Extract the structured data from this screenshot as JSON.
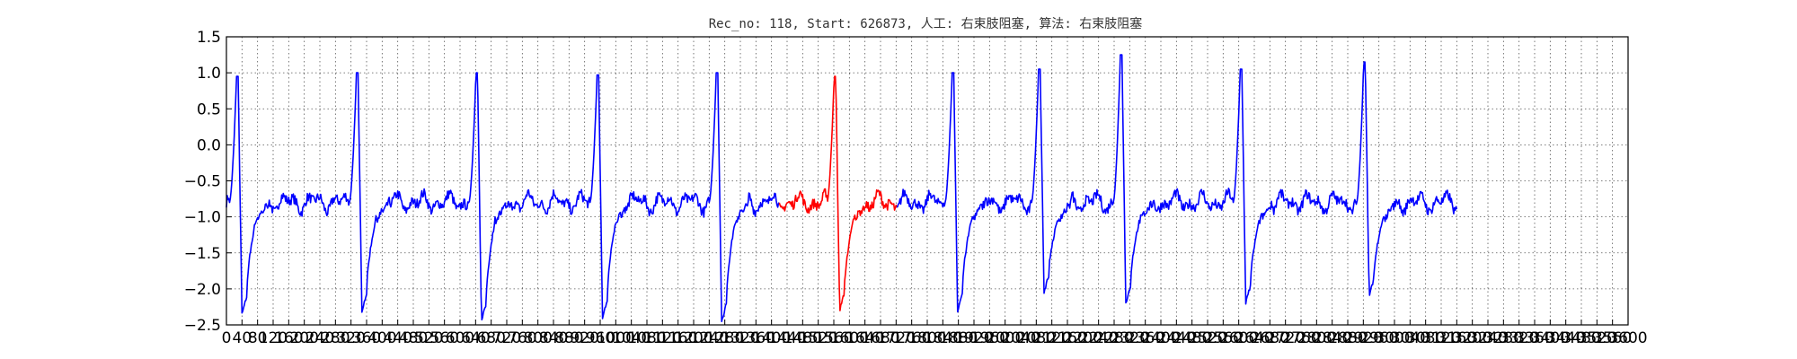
{
  "chart_data": {
    "type": "line",
    "title": "Rec_no: 118, Start: 626873, 人工: 右束肢阻塞, 算法: 右束肢阻塞",
    "xlabel": "",
    "ylabel": "",
    "xlim": [
      0,
      3600
    ],
    "ylim": [
      -2.5,
      1.5
    ],
    "grid": true,
    "yticks": [
      -2.5,
      -2.0,
      -1.5,
      -1.0,
      -0.5,
      0.0,
      0.5,
      1.0,
      1.5
    ],
    "ytick_labels": [
      "−2.5",
      "−2.0",
      "−1.5",
      "−1.0",
      "−0.5",
      "0.0",
      "0.5",
      "1.0",
      "1.5"
    ],
    "xticks": [
      0,
      40,
      80,
      120,
      160,
      200,
      240,
      280,
      320,
      360,
      400,
      440,
      480,
      520,
      560,
      600,
      640,
      680,
      720,
      760,
      800,
      840,
      880,
      920,
      960,
      1000,
      1040,
      1080,
      1120,
      1160,
      1200,
      1240,
      1280,
      1320,
      1360,
      1400,
      1440,
      1480,
      1520,
      1560,
      1600,
      1640,
      1680,
      1720,
      1760,
      1800,
      1840,
      1880,
      1920,
      1960,
      2000,
      2040,
      2080,
      2120,
      2160,
      2200,
      2240,
      2280,
      2320,
      2360,
      2400,
      2440,
      2480,
      2520,
      2560,
      2600,
      2640,
      2680,
      2720,
      2760,
      2800,
      2840,
      2880,
      2920,
      2960,
      3000,
      3040,
      3080,
      3120,
      3160,
      3200,
      3240,
      3280,
      3320,
      3360,
      3400,
      3440,
      3480,
      3520,
      3560,
      3600
    ],
    "xtick_labels": [
      "0",
      "40",
      "80",
      "120",
      "160",
      "200",
      "240",
      "280",
      "320",
      "360",
      "400",
      "440",
      "480",
      "520",
      "560",
      "600",
      "640",
      "680",
      "720",
      "760",
      "800",
      "840",
      "880",
      "920",
      "960",
      "1000",
      "1040",
      "1080",
      "1120",
      "1160",
      "1200",
      "1240",
      "1280",
      "1320",
      "1360",
      "1400",
      "1440",
      "1480",
      "1520",
      "1560",
      "1600",
      "1640",
      "1680",
      "1720",
      "1760",
      "1800",
      "1840",
      "1880",
      "1920",
      "1960",
      "2000",
      "2040",
      "2080",
      "2120",
      "2160",
      "2200",
      "2240",
      "2280",
      "2320",
      "2360",
      "2400",
      "2440",
      "2480",
      "2520",
      "2560",
      "2600",
      "2640",
      "2680",
      "2720",
      "2760",
      "2800",
      "2840",
      "2880",
      "2920",
      "2960",
      "3000",
      "3040",
      "3080",
      "3120",
      "3160",
      "3200",
      "3240",
      "3280",
      "3320",
      "3360",
      "3400",
      "3440",
      "3480",
      "3520",
      "3560",
      "3600"
    ],
    "beats": [
      {
        "x": 30,
        "peak": 0.95,
        "trough": -2.35,
        "highlight": false
      },
      {
        "x": 338,
        "peak": 1.0,
        "trough": -2.3,
        "highlight": false
      },
      {
        "x": 645,
        "peak": 1.0,
        "trough": -2.45,
        "highlight": false
      },
      {
        "x": 956,
        "peak": 0.97,
        "trough": -2.4,
        "highlight": false
      },
      {
        "x": 1262,
        "peak": 1.0,
        "trough": -2.45,
        "highlight": false
      },
      {
        "x": 1565,
        "peak": 0.95,
        "trough": -2.3,
        "highlight": true
      },
      {
        "x": 1868,
        "peak": 1.0,
        "trough": -2.3,
        "highlight": false
      },
      {
        "x": 2090,
        "peak": 1.05,
        "trough": -2.05,
        "highlight": false
      },
      {
        "x": 2300,
        "peak": 1.25,
        "trough": -2.2,
        "highlight": false
      },
      {
        "x": 2608,
        "peak": 1.05,
        "trough": -2.2,
        "highlight": false
      },
      {
        "x": 2925,
        "peak": 1.15,
        "trough": -2.1,
        "highlight": false
      }
    ],
    "baseline": -0.8,
    "signal_end_x": 3160,
    "highlight_range": [
      1420,
      1720
    ],
    "series": [
      {
        "color": "#0000ff"
      },
      {
        "color": "#ff0000"
      }
    ]
  },
  "colors": {
    "axis": "#000000",
    "grid": "#555555",
    "background": "#ffffff"
  }
}
